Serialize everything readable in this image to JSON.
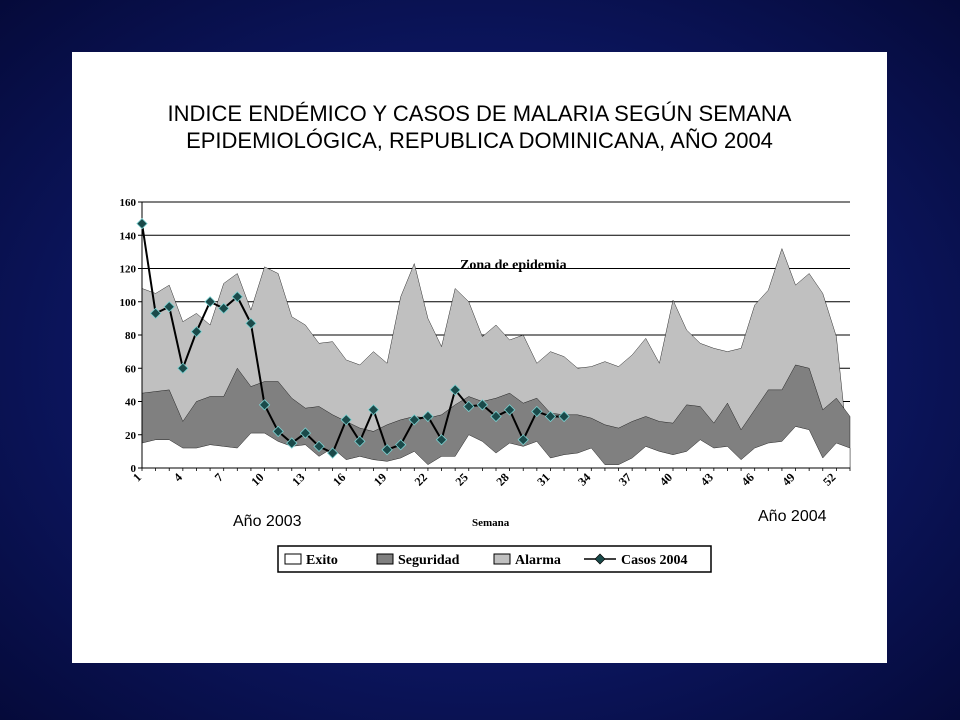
{
  "title_lines": [
    "INDICE ENDÉMICO Y CASOS DE MALARIA SEGÚN SEMANA",
    "EPIDEMIOLÓGICA, REPUBLICA DOMINICANA, AÑO 2004"
  ],
  "colors": {
    "background": "#0c1660",
    "alarma": "#c0c0c0",
    "seguridad": "#808080",
    "exito": "#ffffff",
    "casos_line": "#000000",
    "casos_marker": "#1a4a4a"
  },
  "chart_data": {
    "type": "area",
    "title": "INDICE ENDÉMICO Y CASOS DE MALARIA SEGÚN SEMANA EPIDEMIOLÓGICA, REPUBLICA DOMINICANA, AÑO 2004",
    "xlabel": "Semana",
    "ylabel": "",
    "ylim": [
      0,
      160
    ],
    "xlim": [
      1,
      53
    ],
    "yticks": [
      0,
      20,
      40,
      60,
      80,
      100,
      120,
      140,
      160
    ],
    "xticks": [
      1,
      4,
      7,
      10,
      13,
      16,
      19,
      22,
      25,
      28,
      31,
      34,
      37,
      40,
      43,
      46,
      49,
      52
    ],
    "grid": true,
    "legend_position": "bottom",
    "annotations": [
      "Zona de epidemia",
      "Año 2003",
      "Año 2004"
    ],
    "x": [
      1,
      2,
      3,
      4,
      5,
      6,
      7,
      8,
      9,
      10,
      11,
      12,
      13,
      14,
      15,
      16,
      17,
      18,
      19,
      20,
      21,
      22,
      23,
      24,
      25,
      26,
      27,
      28,
      29,
      30,
      31,
      32,
      33,
      34,
      35,
      36,
      37,
      38,
      39,
      40,
      41,
      42,
      43,
      44,
      45,
      46,
      47,
      48,
      49,
      50,
      51,
      52,
      53
    ],
    "series": [
      {
        "name": "Exito",
        "kind": "area",
        "values": [
          15,
          17,
          17,
          12,
          12,
          14,
          13,
          12,
          21,
          21,
          16,
          13,
          14,
          7,
          12,
          5,
          7,
          5,
          4,
          6,
          10,
          2,
          7,
          7,
          20,
          16,
          9,
          15,
          13,
          16,
          6,
          8,
          9,
          12,
          2,
          2,
          6,
          13,
          10,
          8,
          10,
          17,
          12,
          13,
          5,
          12,
          15,
          16,
          25,
          23,
          6,
          15,
          12
        ]
      },
      {
        "name": "Seguridad",
        "kind": "area",
        "values": [
          45,
          46,
          47,
          28,
          40,
          43,
          43,
          60,
          49,
          52,
          52,
          42,
          36,
          37,
          32,
          28,
          24,
          22,
          26,
          29,
          31,
          30,
          32,
          38,
          43,
          40,
          42,
          45,
          39,
          42,
          33,
          32,
          32,
          30,
          26,
          24,
          28,
          31,
          28,
          27,
          38,
          37,
          27,
          39,
          23,
          35,
          47,
          47,
          62,
          60,
          35,
          42,
          31
        ]
      },
      {
        "name": "Alarma",
        "kind": "area",
        "values": [
          108,
          105,
          110,
          88,
          93,
          86,
          111,
          117,
          95,
          121,
          117,
          91,
          86,
          75,
          76,
          65,
          62,
          70,
          63,
          103,
          123,
          90,
          73,
          108,
          100,
          79,
          86,
          77,
          80,
          63,
          70,
          67,
          60,
          61,
          64,
          61,
          68,
          78,
          63,
          101,
          83,
          75,
          72,
          70,
          72,
          98,
          107,
          132,
          110,
          117,
          105,
          79,
          0
        ]
      },
      {
        "name": "Casos 2004",
        "kind": "line",
        "values": [
          147,
          93,
          97,
          60,
          82,
          100,
          96,
          103,
          87,
          38,
          22,
          15,
          21,
          13,
          9,
          29,
          16,
          35,
          11,
          14,
          29,
          31,
          17,
          47,
          37,
          38,
          31,
          35,
          17,
          34,
          31,
          31,
          null,
          null,
          null,
          null,
          null,
          null,
          null,
          null,
          null,
          null,
          null,
          null,
          null,
          null,
          null,
          null,
          null,
          null,
          null,
          null,
          null
        ]
      }
    ]
  },
  "legend": {
    "exito": "Exito",
    "seguridad": "Seguridad",
    "alarma": "Alarma",
    "casos": "Casos 2004"
  },
  "labels": {
    "zona_epidemia": "Zona de epidemia",
    "year_2003": "Año 2003",
    "year_2004": "Año 2004",
    "x_axis_title": "Semana"
  }
}
